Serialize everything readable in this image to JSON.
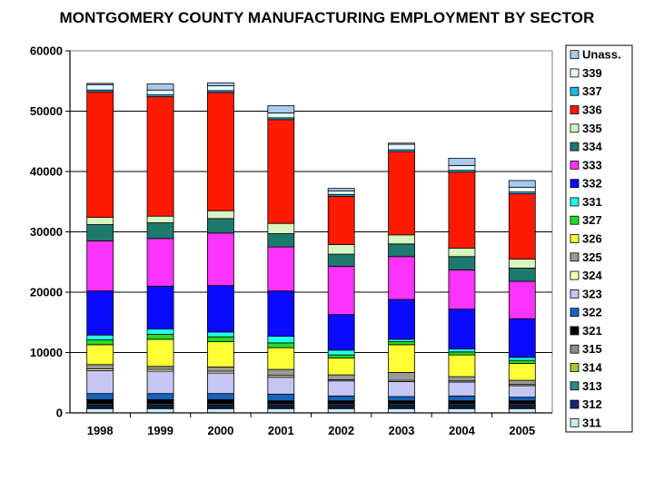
{
  "chart_data": {
    "type": "bar",
    "stacked": true,
    "title": "MONTGOMERY COUNTY MANUFACTURING EMPLOYMENT BY SECTOR",
    "xlabel": "",
    "ylabel": "",
    "ylim": [
      0,
      60000
    ],
    "yticks": [
      "0",
      "10000",
      "20000",
      "30000",
      "40000",
      "50000",
      "60000"
    ],
    "grid": true,
    "legend_position": "right",
    "categories": [
      "1998",
      "1999",
      "2000",
      "2001",
      "2002",
      "2003",
      "2004",
      "2005"
    ],
    "series": [
      {
        "name": "311",
        "color": "#ccecf7",
        "values": [
          700,
          700,
          700,
          700,
          700,
          700,
          700,
          700
        ]
      },
      {
        "name": "312",
        "color": "#1a237e",
        "values": [
          300,
          300,
          300,
          300,
          300,
          300,
          300,
          300
        ]
      },
      {
        "name": "313",
        "color": "#2a8a8a",
        "values": [
          200,
          200,
          200,
          200,
          200,
          200,
          200,
          200
        ]
      },
      {
        "name": "314",
        "color": "#9acd32",
        "values": [
          100,
          100,
          100,
          100,
          100,
          100,
          100,
          100
        ]
      },
      {
        "name": "315",
        "color": "#8c8c8c",
        "values": [
          200,
          200,
          200,
          200,
          200,
          200,
          200,
          200
        ]
      },
      {
        "name": "321",
        "color": "#000000",
        "values": [
          700,
          700,
          700,
          500,
          500,
          500,
          500,
          500
        ]
      },
      {
        "name": "322",
        "color": "#1565c0",
        "values": [
          1000,
          1000,
          1000,
          1100,
          800,
          700,
          800,
          600
        ]
      },
      {
        "name": "323",
        "color": "#c5c6f2",
        "values": [
          3800,
          3700,
          3400,
          2800,
          2500,
          2500,
          2300,
          1900
        ]
      },
      {
        "name": "324",
        "color": "#ffffb0",
        "values": [
          300,
          300,
          300,
          300,
          200,
          200,
          200,
          200
        ]
      },
      {
        "name": "325",
        "color": "#9a9a9a",
        "values": [
          700,
          500,
          700,
          1000,
          800,
          1300,
          700,
          700
        ]
      },
      {
        "name": "326",
        "color": "#ffff33",
        "values": [
          3300,
          4500,
          4200,
          3600,
          2800,
          4600,
          3600,
          2800
        ]
      },
      {
        "name": "327",
        "color": "#22dd22",
        "values": [
          800,
          800,
          800,
          800,
          500,
          500,
          500,
          500
        ]
      },
      {
        "name": "331",
        "color": "#22ffee",
        "values": [
          800,
          900,
          800,
          1100,
          800,
          400,
          500,
          500
        ]
      },
      {
        "name": "332",
        "color": "#0a0aff",
        "values": [
          7300,
          7100,
          7700,
          7500,
          5900,
          6600,
          6600,
          6400
        ]
      },
      {
        "name": "333",
        "color": "#ff33ff",
        "values": [
          8300,
          7900,
          8700,
          7300,
          8000,
          7100,
          6500,
          6200
        ]
      },
      {
        "name": "334",
        "color": "#1e7a6e",
        "values": [
          2700,
          2600,
          2400,
          2200,
          2000,
          2100,
          2200,
          2200
        ]
      },
      {
        "name": "335",
        "color": "#d9f5c0",
        "values": [
          1200,
          1100,
          1300,
          1700,
          1600,
          1500,
          1400,
          1500
        ]
      },
      {
        "name": "336",
        "color": "#ff1a00",
        "values": [
          20800,
          19800,
          19600,
          17200,
          8000,
          13800,
          12600,
          10800
        ]
      },
      {
        "name": "337",
        "color": "#22b5ee",
        "values": [
          300,
          300,
          300,
          300,
          300,
          300,
          300,
          300
        ]
      },
      {
        "name": "339",
        "color": "#e5f8ff",
        "values": [
          900,
          800,
          800,
          800,
          600,
          900,
          800,
          800
        ]
      },
      {
        "name": "Unass.",
        "color": "#a8cbf0",
        "values": [
          200,
          1000,
          500,
          1200,
          400,
          200,
          1200,
          1100
        ]
      }
    ]
  }
}
